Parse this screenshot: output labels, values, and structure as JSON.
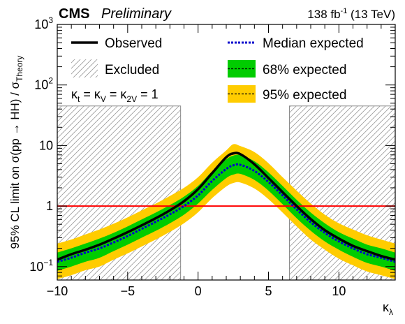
{
  "header": {
    "experiment": "CMS",
    "status": "Preliminary",
    "lumi_value": "138 fb",
    "lumi_exp": "-1",
    "energy": " (13 TeV)"
  },
  "chart_data": {
    "type": "line",
    "xlabel": "κ",
    "xlabel_sub": "λ",
    "ylabel_main": "95% CL limit on σ(pp → HH) / σ",
    "ylabel_sub": "Theory",
    "xlim": [
      -10,
      14
    ],
    "ylim": [
      0.06,
      1000
    ],
    "yscale": "log",
    "x_ticks": [
      -10,
      -5,
      0,
      5,
      10
    ],
    "x_tick_labels": [
      "−10",
      "−5",
      "0",
      "5",
      "10"
    ],
    "y_ticks": [
      0.1,
      1,
      10,
      100,
      1000
    ],
    "y_tick_labels": [
      {
        "base": "10",
        "exp": "−1"
      },
      {
        "base": "1",
        "exp": ""
      },
      {
        "base": "10",
        "exp": ""
      },
      {
        "base": "10",
        "exp": "2"
      },
      {
        "base": "10",
        "exp": "3"
      }
    ],
    "excluded_regions": [
      [
        -10,
        -1.24
      ],
      [
        6.49,
        14
      ]
    ],
    "excluded_top": 45,
    "reference_line": {
      "y": 1,
      "color": "#ff0000"
    },
    "condition_text": {
      "k1": "κ",
      "s1": "t",
      "eq1": " = κ",
      "s2": "V",
      "eq2": " = κ",
      "s3": "2V",
      "eq3": " = 1"
    },
    "legend": {
      "observed": "Observed",
      "excluded": "Excluded",
      "median": "Median expected",
      "band68": "68% expected",
      "band95": "95% expected"
    },
    "colors": {
      "observed": "#000000",
      "median": "#0000cc",
      "band68": "#00cc00",
      "band95": "#ffcc00",
      "reference": "#ff0000",
      "hatch": "#9a9a9a"
    },
    "x": [
      -10,
      -9,
      -8,
      -7,
      -6,
      -5,
      -4,
      -3,
      -2,
      -1,
      0,
      1,
      2,
      2.5,
      3,
      4,
      5,
      6,
      7,
      8,
      9,
      10,
      11,
      12,
      13,
      14
    ],
    "series": [
      {
        "name": "Observed",
        "values": [
          0.13,
          0.16,
          0.19,
          0.23,
          0.29,
          0.37,
          0.48,
          0.63,
          0.85,
          1.2,
          1.9,
          3.5,
          6.4,
          7.4,
          7.2,
          4.9,
          2.9,
          1.7,
          1.0,
          0.61,
          0.4,
          0.29,
          0.22,
          0.18,
          0.15,
          0.13
        ]
      },
      {
        "name": "Median expected",
        "values": [
          0.12,
          0.14,
          0.17,
          0.2,
          0.25,
          0.32,
          0.42,
          0.55,
          0.73,
          1.0,
          1.5,
          2.6,
          4.1,
          4.7,
          4.8,
          3.8,
          2.5,
          1.5,
          0.88,
          0.54,
          0.36,
          0.26,
          0.2,
          0.16,
          0.14,
          0.12
        ]
      },
      {
        "name": "68% expected",
        "lower": [
          0.085,
          0.1,
          0.12,
          0.14,
          0.18,
          0.23,
          0.3,
          0.39,
          0.52,
          0.72,
          1.1,
          1.85,
          2.9,
          3.3,
          3.4,
          2.7,
          1.8,
          1.07,
          0.63,
          0.39,
          0.26,
          0.19,
          0.145,
          0.115,
          0.1,
          0.085
        ],
        "upper": [
          0.17,
          0.2,
          0.24,
          0.29,
          0.36,
          0.46,
          0.6,
          0.78,
          1.04,
          1.43,
          2.15,
          3.75,
          5.9,
          6.8,
          6.9,
          5.5,
          3.6,
          2.15,
          1.27,
          0.78,
          0.52,
          0.37,
          0.29,
          0.23,
          0.2,
          0.17
        ]
      },
      {
        "name": "95% expected",
        "lower": [
          0.062,
          0.072,
          0.087,
          0.1,
          0.13,
          0.165,
          0.215,
          0.28,
          0.375,
          0.52,
          0.79,
          1.35,
          2.1,
          2.4,
          2.45,
          1.95,
          1.3,
          0.78,
          0.46,
          0.28,
          0.19,
          0.135,
          0.105,
          0.083,
          0.072,
          0.062
        ],
        "upper": [
          0.24,
          0.28,
          0.34,
          0.41,
          0.51,
          0.65,
          0.85,
          1.1,
          1.47,
          2.0,
          3.0,
          5.2,
          8.3,
          10.5,
          9.8,
          7.8,
          5.1,
          3.0,
          1.8,
          1.1,
          0.72,
          0.52,
          0.41,
          0.33,
          0.28,
          0.24
        ]
      }
    ]
  }
}
